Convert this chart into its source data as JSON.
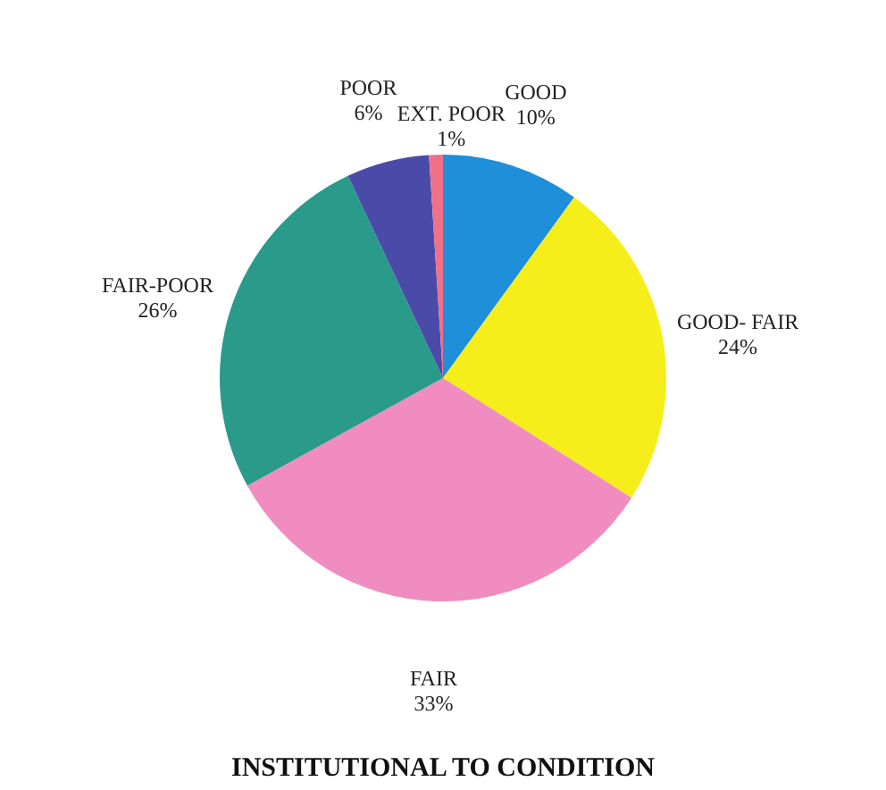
{
  "chart_data": {
    "type": "pie",
    "title": "INSTITUTIONAL TO CONDITION",
    "categories": [
      "GOOD",
      "GOOD- FAIR",
      "FAIR",
      "FAIR-POOR",
      "POOR",
      "EXT. POOR"
    ],
    "values": [
      10,
      24,
      33,
      26,
      6,
      1
    ],
    "value_labels": [
      "10%",
      "24%",
      "33%",
      "26%",
      "6%",
      "1%"
    ],
    "colors": [
      "#1e8fd8",
      "#f5ee1a",
      "#f08cc0",
      "#2a9a8a",
      "#4a4aa8",
      "#f07088"
    ],
    "legend": false
  }
}
